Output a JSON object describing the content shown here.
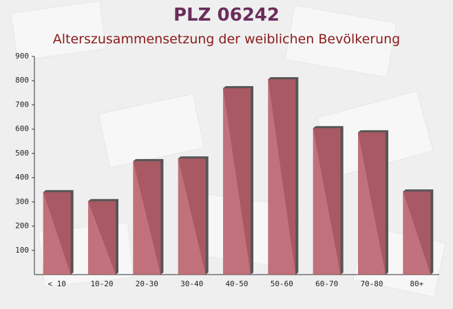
{
  "chart_data": {
    "type": "bar",
    "title": "PLZ 06242",
    "subtitle": "Alterszusammensetzung der weiblichen Bevölkerung",
    "categories": [
      "< 10",
      "10-20",
      "20-30",
      "30-40",
      "40-50",
      "50-60",
      "60-70",
      "70-80",
      "80+"
    ],
    "values": [
      340,
      303,
      468,
      479,
      769,
      806,
      604,
      587,
      343
    ],
    "color": "#b85a66",
    "ylim": [
      0,
      900
    ],
    "yticks": [
      100,
      200,
      300,
      400,
      500,
      600,
      700,
      800,
      900
    ],
    "grid": false
  }
}
